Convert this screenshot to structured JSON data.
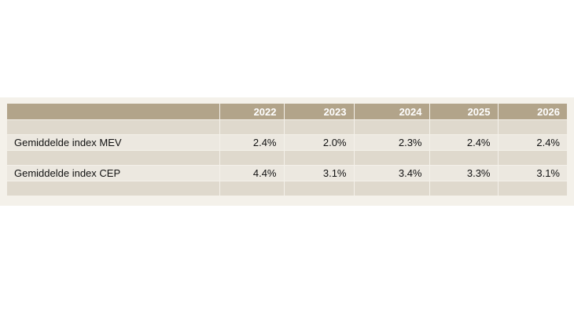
{
  "table": {
    "header": {
      "label": "",
      "years": [
        "2022",
        "2023",
        "2024",
        "2025",
        "2026"
      ]
    },
    "rows": [
      {
        "label": "Gemiddelde index MEV",
        "values": [
          "2.4%",
          "2.0%",
          "2.3%",
          "2.4%",
          "2.4%"
        ]
      },
      {
        "label": "Gemiddelde index CEP",
        "values": [
          "4.4%",
          "3.1%",
          "3.4%",
          "3.3%",
          "3.1%"
        ]
      }
    ]
  }
}
